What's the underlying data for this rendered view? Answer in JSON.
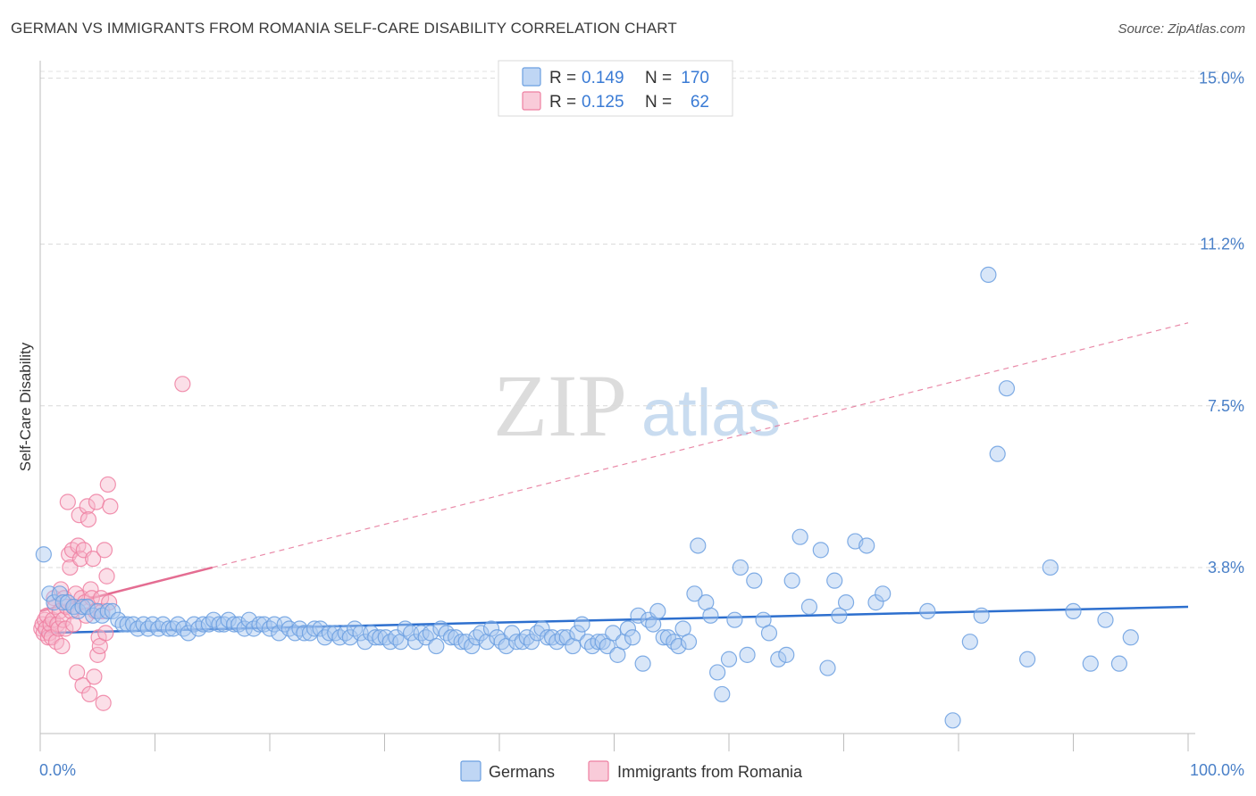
{
  "title": "GERMAN VS IMMIGRANTS FROM ROMANIA SELF-CARE DISABILITY CORRELATION CHART",
  "source": "Source: ZipAtlas.com",
  "watermark": {
    "zip": "ZIP",
    "atlas": "atlas"
  },
  "legend": {
    "rows": [
      {
        "r_label": "R =",
        "r_value": "0.149",
        "n_label": "N =",
        "n_value": "170",
        "color": "#a9c8f0"
      },
      {
        "r_label": "R =",
        "r_value": "0.125",
        "n_label": "N =",
        "n_value": "62",
        "color": "#f7b9cc"
      }
    ]
  },
  "bottom_legend": [
    "Germans",
    "Immigrants from Romania"
  ],
  "chart_data": {
    "type": "scatter",
    "ylabel": "Self-Care Disability",
    "xlabel": "",
    "x_tick_labels": [
      "0.0%",
      "100.0%"
    ],
    "y_tick_labels": [
      "3.8%",
      "7.5%",
      "11.2%",
      "15.0%"
    ],
    "y_ticks": [
      3.8,
      7.5,
      11.2,
      15.0
    ],
    "xlim": [
      0,
      100
    ],
    "ylim": [
      0,
      15.4
    ],
    "grid": true,
    "legend_position": "top-center",
    "series": [
      {
        "name": "Germans",
        "color": "#6b9fe0",
        "fill": "#a9c8f0",
        "trend": {
          "x": [
            0,
            100
          ],
          "y": [
            2.3,
            2.9
          ],
          "color": "#2d6fce",
          "dashed": false
        },
        "points": [
          [
            0.3,
            4.1
          ],
          [
            0.8,
            3.2
          ],
          [
            1.2,
            3.0
          ],
          [
            1.7,
            3.2
          ],
          [
            2.0,
            3.0
          ],
          [
            2.4,
            3.0
          ],
          [
            2.9,
            2.9
          ],
          [
            3.3,
            2.8
          ],
          [
            3.7,
            2.9
          ],
          [
            4.1,
            2.9
          ],
          [
            4.6,
            2.7
          ],
          [
            5.0,
            2.8
          ],
          [
            5.4,
            2.7
          ],
          [
            5.9,
            2.8
          ],
          [
            6.3,
            2.8
          ],
          [
            6.8,
            2.6
          ],
          [
            7.2,
            2.5
          ],
          [
            7.6,
            2.5
          ],
          [
            8.1,
            2.5
          ],
          [
            8.5,
            2.4
          ],
          [
            9.0,
            2.5
          ],
          [
            9.4,
            2.4
          ],
          [
            9.8,
            2.5
          ],
          [
            10.3,
            2.4
          ],
          [
            10.7,
            2.5
          ],
          [
            11.2,
            2.4
          ],
          [
            11.6,
            2.4
          ],
          [
            12.0,
            2.5
          ],
          [
            12.5,
            2.4
          ],
          [
            12.9,
            2.3
          ],
          [
            13.4,
            2.5
          ],
          [
            13.8,
            2.4
          ],
          [
            14.2,
            2.5
          ],
          [
            14.7,
            2.5
          ],
          [
            15.1,
            2.6
          ],
          [
            15.6,
            2.5
          ],
          [
            16.0,
            2.5
          ],
          [
            16.4,
            2.6
          ],
          [
            16.9,
            2.5
          ],
          [
            17.3,
            2.5
          ],
          [
            17.8,
            2.4
          ],
          [
            18.2,
            2.6
          ],
          [
            18.6,
            2.4
          ],
          [
            19.1,
            2.5
          ],
          [
            19.5,
            2.5
          ],
          [
            20.0,
            2.4
          ],
          [
            20.4,
            2.5
          ],
          [
            20.8,
            2.3
          ],
          [
            21.3,
            2.5
          ],
          [
            21.7,
            2.4
          ],
          [
            22.2,
            2.3
          ],
          [
            22.6,
            2.4
          ],
          [
            23.0,
            2.3
          ],
          [
            23.5,
            2.3
          ],
          [
            23.9,
            2.4
          ],
          [
            24.4,
            2.4
          ],
          [
            24.8,
            2.2
          ],
          [
            25.2,
            2.3
          ],
          [
            25.7,
            2.3
          ],
          [
            26.1,
            2.2
          ],
          [
            26.6,
            2.3
          ],
          [
            27.0,
            2.2
          ],
          [
            27.4,
            2.4
          ],
          [
            27.9,
            2.3
          ],
          [
            28.3,
            2.1
          ],
          [
            28.8,
            2.3
          ],
          [
            29.2,
            2.2
          ],
          [
            29.6,
            2.2
          ],
          [
            30.1,
            2.2
          ],
          [
            30.5,
            2.1
          ],
          [
            31.0,
            2.2
          ],
          [
            31.4,
            2.1
          ],
          [
            31.8,
            2.4
          ],
          [
            32.3,
            2.3
          ],
          [
            32.7,
            2.1
          ],
          [
            33.2,
            2.3
          ],
          [
            33.6,
            2.2
          ],
          [
            34.0,
            2.3
          ],
          [
            34.5,
            2.0
          ],
          [
            34.9,
            2.4
          ],
          [
            35.4,
            2.3
          ],
          [
            35.8,
            2.2
          ],
          [
            36.2,
            2.2
          ],
          [
            36.7,
            2.1
          ],
          [
            37.1,
            2.1
          ],
          [
            37.6,
            2.0
          ],
          [
            38.0,
            2.2
          ],
          [
            38.4,
            2.3
          ],
          [
            38.9,
            2.1
          ],
          [
            39.3,
            2.4
          ],
          [
            39.8,
            2.2
          ],
          [
            40.2,
            2.1
          ],
          [
            40.6,
            2.0
          ],
          [
            41.1,
            2.3
          ],
          [
            41.5,
            2.1
          ],
          [
            42.0,
            2.1
          ],
          [
            42.4,
            2.2
          ],
          [
            42.8,
            2.1
          ],
          [
            43.3,
            2.3
          ],
          [
            43.7,
            2.4
          ],
          [
            44.2,
            2.2
          ],
          [
            44.6,
            2.2
          ],
          [
            45.0,
            2.1
          ],
          [
            45.5,
            2.2
          ],
          [
            45.9,
            2.2
          ],
          [
            46.4,
            2.0
          ],
          [
            46.8,
            2.3
          ],
          [
            47.2,
            2.5
          ],
          [
            47.7,
            2.1
          ],
          [
            48.1,
            2.0
          ],
          [
            48.6,
            2.1
          ],
          [
            49.0,
            2.1
          ],
          [
            49.4,
            2.0
          ],
          [
            49.9,
            2.3
          ],
          [
            50.3,
            1.8
          ],
          [
            50.8,
            2.1
          ],
          [
            51.2,
            2.4
          ],
          [
            51.6,
            2.2
          ],
          [
            52.1,
            2.7
          ],
          [
            52.5,
            1.6
          ],
          [
            53.0,
            2.6
          ],
          [
            53.4,
            2.5
          ],
          [
            53.8,
            2.8
          ],
          [
            54.3,
            2.2
          ],
          [
            54.7,
            2.2
          ],
          [
            55.2,
            2.1
          ],
          [
            55.6,
            2.0
          ],
          [
            56.0,
            2.4
          ],
          [
            56.5,
            2.1
          ],
          [
            57.0,
            3.2
          ],
          [
            57.3,
            4.3
          ],
          [
            58.0,
            3.0
          ],
          [
            58.4,
            2.7
          ],
          [
            59.0,
            1.4
          ],
          [
            59.4,
            0.9
          ],
          [
            60.0,
            1.7
          ],
          [
            60.5,
            2.6
          ],
          [
            61.0,
            3.8
          ],
          [
            61.6,
            1.8
          ],
          [
            62.2,
            3.5
          ],
          [
            63.0,
            2.6
          ],
          [
            63.5,
            2.3
          ],
          [
            64.3,
            1.7
          ],
          [
            65.0,
            1.8
          ],
          [
            65.5,
            3.5
          ],
          [
            66.2,
            4.5
          ],
          [
            67.0,
            2.9
          ],
          [
            68.0,
            4.2
          ],
          [
            68.6,
            1.5
          ],
          [
            69.2,
            3.5
          ],
          [
            69.6,
            2.7
          ],
          [
            70.2,
            3.0
          ],
          [
            71.0,
            4.4
          ],
          [
            72.0,
            4.3
          ],
          [
            72.8,
            3.0
          ],
          [
            73.4,
            3.2
          ],
          [
            77.3,
            2.8
          ],
          [
            79.5,
            0.3
          ],
          [
            81.0,
            2.1
          ],
          [
            82.0,
            2.7
          ],
          [
            82.6,
            10.5
          ],
          [
            83.4,
            6.4
          ],
          [
            84.2,
            7.9
          ],
          [
            86.0,
            1.7
          ],
          [
            88.0,
            3.8
          ],
          [
            90.0,
            2.8
          ],
          [
            91.5,
            1.6
          ],
          [
            92.8,
            2.6
          ],
          [
            94.0,
            1.6
          ],
          [
            95.0,
            2.2
          ]
        ]
      },
      {
        "name": "Immigrants from Romania",
        "color": "#ee7fa1",
        "fill": "#f7b9cc",
        "trend": {
          "x": [
            0,
            15
          ],
          "y": [
            2.8,
            3.8
          ],
          "x_ext": [
            15,
            100
          ],
          "y_ext": [
            3.8,
            9.4
          ],
          "color": "#e46d92",
          "dashed_ext": true
        },
        "points": [
          [
            0.1,
            2.4
          ],
          [
            0.2,
            2.5
          ],
          [
            0.3,
            2.3
          ],
          [
            0.4,
            2.6
          ],
          [
            0.5,
            2.4
          ],
          [
            0.6,
            2.7
          ],
          [
            0.7,
            2.2
          ],
          [
            0.8,
            2.3
          ],
          [
            0.9,
            2.5
          ],
          [
            1.0,
            2.2
          ],
          [
            1.1,
            2.6
          ],
          [
            1.2,
            3.1
          ],
          [
            1.3,
            2.9
          ],
          [
            1.4,
            2.1
          ],
          [
            1.5,
            2.5
          ],
          [
            1.6,
            2.4
          ],
          [
            1.7,
            2.8
          ],
          [
            1.8,
            3.3
          ],
          [
            1.9,
            2.0
          ],
          [
            2.0,
            2.6
          ],
          [
            2.1,
            3.1
          ],
          [
            2.2,
            2.4
          ],
          [
            2.3,
            2.9
          ],
          [
            2.4,
            5.3
          ],
          [
            2.5,
            4.1
          ],
          [
            2.6,
            3.8
          ],
          [
            2.7,
            2.8
          ],
          [
            2.8,
            4.2
          ],
          [
            2.9,
            2.5
          ],
          [
            3.0,
            2.9
          ],
          [
            3.1,
            3.2
          ],
          [
            3.2,
            1.4
          ],
          [
            3.3,
            4.3
          ],
          [
            3.4,
            5.0
          ],
          [
            3.5,
            4.0
          ],
          [
            3.6,
            3.1
          ],
          [
            3.7,
            1.1
          ],
          [
            3.8,
            4.2
          ],
          [
            3.9,
            3.0
          ],
          [
            4.0,
            2.7
          ],
          [
            4.1,
            5.2
          ],
          [
            4.2,
            4.9
          ],
          [
            4.3,
            0.9
          ],
          [
            4.4,
            3.3
          ],
          [
            4.5,
            3.1
          ],
          [
            4.6,
            4.0
          ],
          [
            4.7,
            1.3
          ],
          [
            4.8,
            2.8
          ],
          [
            4.9,
            5.3
          ],
          [
            5.0,
            1.8
          ],
          [
            5.1,
            2.2
          ],
          [
            5.2,
            2.0
          ],
          [
            5.3,
            3.1
          ],
          [
            5.4,
            2.8
          ],
          [
            5.5,
            0.7
          ],
          [
            5.6,
            4.2
          ],
          [
            5.7,
            2.3
          ],
          [
            5.8,
            3.6
          ],
          [
            5.9,
            5.7
          ],
          [
            6.0,
            3.0
          ],
          [
            6.1,
            5.2
          ],
          [
            12.4,
            8.0
          ]
        ]
      }
    ]
  }
}
